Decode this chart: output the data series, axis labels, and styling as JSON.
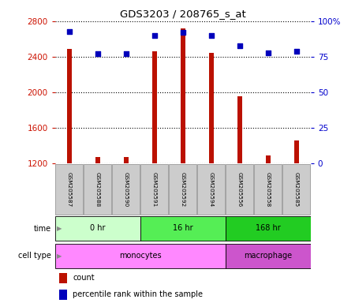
{
  "title": "GDS3203 / 208765_s_at",
  "samples": [
    "GSM205587",
    "GSM205588",
    "GSM205590",
    "GSM205591",
    "GSM205592",
    "GSM205594",
    "GSM205556",
    "GSM205558",
    "GSM205585"
  ],
  "counts": [
    2490,
    1270,
    1270,
    2460,
    2720,
    2440,
    1960,
    1290,
    1460
  ],
  "percentiles": [
    93,
    77,
    77,
    90,
    92,
    90,
    83,
    78,
    79
  ],
  "ylim_left": [
    1200,
    2800
  ],
  "ylim_right": [
    0,
    100
  ],
  "yticks_left": [
    1200,
    1600,
    2000,
    2400,
    2800
  ],
  "yticks_right": [
    0,
    25,
    50,
    75,
    100
  ],
  "bar_color": "#bb1100",
  "dot_color": "#0000bb",
  "time_groups": [
    {
      "label": "0 hr",
      "start": 0,
      "end": 3,
      "color": "#ccffcc"
    },
    {
      "label": "16 hr",
      "start": 3,
      "end": 6,
      "color": "#55ee55"
    },
    {
      "label": "168 hr",
      "start": 6,
      "end": 9,
      "color": "#22cc22"
    }
  ],
  "cell_groups": [
    {
      "label": "monocytes",
      "start": 0,
      "end": 6,
      "color": "#ff88ff"
    },
    {
      "label": "macrophage",
      "start": 6,
      "end": 9,
      "color": "#cc55cc"
    }
  ],
  "legend_count_label": "count",
  "legend_pct_label": "percentile rank within the sample",
  "time_label": "time",
  "cell_type_label": "cell type",
  "grid_color": "#000000",
  "tick_color_left": "#cc1100",
  "tick_color_right": "#0000cc",
  "sample_box_color": "#cccccc",
  "background_color": "#ffffff",
  "bar_width": 0.18
}
